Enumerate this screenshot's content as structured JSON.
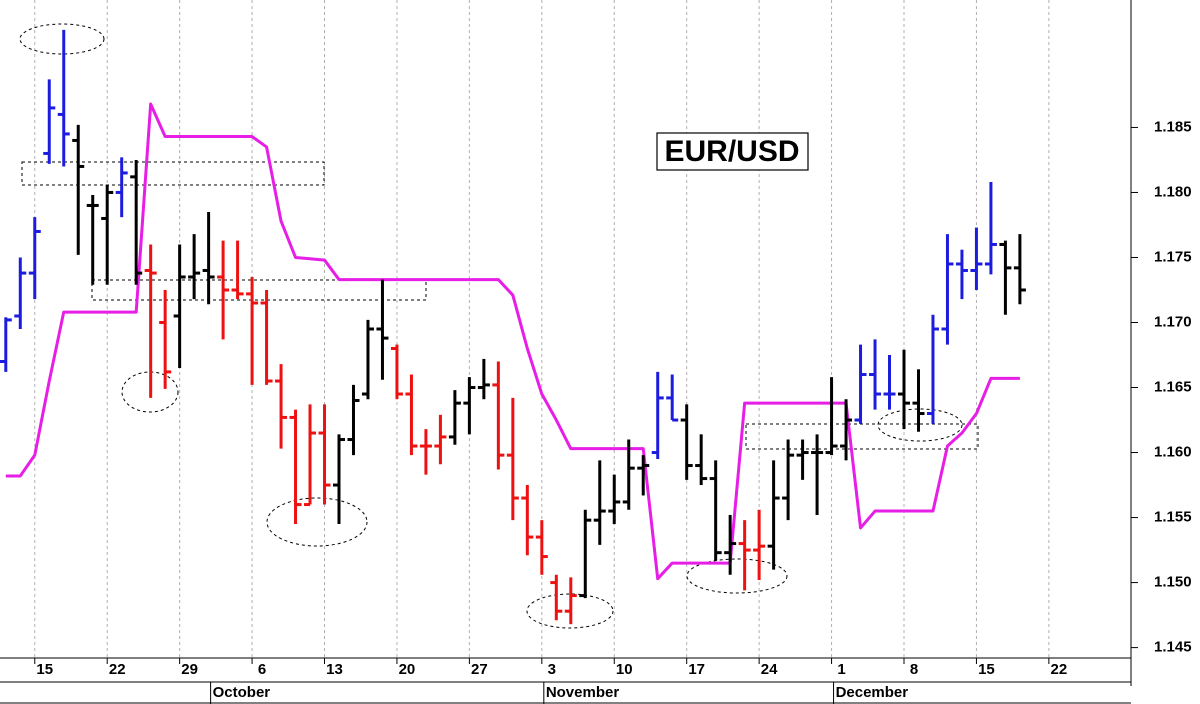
{
  "chart_data": {
    "type": "ohlc",
    "title": "EUR/USD",
    "categories": [
      null,
      null,
      "15",
      null,
      null,
      null,
      null,
      "22",
      null,
      null,
      null,
      null,
      "29",
      null,
      null,
      null,
      null,
      "6",
      null,
      null,
      null,
      null,
      "13",
      null,
      null,
      null,
      null,
      "20",
      null,
      null,
      null,
      null,
      "27",
      null,
      null,
      null,
      null,
      "3",
      null,
      null,
      null,
      null,
      "10",
      null,
      null,
      null,
      null,
      "17",
      null,
      null,
      null,
      null,
      "24",
      null,
      null,
      null,
      null,
      "1",
      null,
      null,
      null,
      null,
      "8",
      null,
      null,
      null,
      null,
      "15",
      null,
      null,
      null,
      null,
      "22",
      null,
      null,
      null,
      null,
      null
    ],
    "month_labels": [
      null,
      null,
      null,
      null,
      null,
      null,
      null,
      null,
      null,
      null,
      null,
      null,
      null,
      null,
      "October",
      null,
      null,
      null,
      null,
      null,
      null,
      null,
      null,
      null,
      null,
      null,
      null,
      null,
      null,
      null,
      null,
      null,
      null,
      null,
      null,
      null,
      null,
      "November",
      null,
      null,
      null,
      null,
      null,
      null,
      null,
      null,
      null,
      null,
      null,
      null,
      null,
      null,
      null,
      null,
      null,
      null,
      null,
      "December",
      null,
      null,
      null,
      null,
      null,
      null,
      null,
      null,
      null,
      null,
      null,
      null,
      null,
      null,
      null,
      null,
      null,
      null,
      null,
      null
    ],
    "open": [
      1.167,
      1.1705,
      1.1738,
      1.183,
      1.186,
      1.184,
      1.179,
      1.178,
      1.18,
      1.1812,
      1.174,
      1.17,
      1.1705,
      1.1735,
      1.174,
      1.1735,
      1.1725,
      1.1722,
      1.1715,
      1.1655,
      1.1627,
      1.156,
      1.1615,
      1.1575,
      1.161,
      1.1645,
      1.1695,
      1.168,
      1.1645,
      1.1605,
      1.1605,
      1.1612,
      1.1638,
      1.165,
      1.1652,
      1.1598,
      1.1565,
      1.1535,
      1.15,
      1.1478,
      1.149,
      1.1548,
      1.1555,
      1.1562,
      1.1588,
      1.16,
      1.1642,
      1.1625,
      1.159,
      1.158,
      1.1523,
      1.153,
      1.1525,
      1.1528,
      1.1565,
      1.1598,
      1.16,
      1.16,
      1.1605,
      1.1625,
      1.166,
      1.1645,
      1.1645,
      1.1638,
      1.163,
      1.1695,
      1.1745,
      1.174,
      1.1745,
      1.176,
      1.1742,
      null,
      null,
      null,
      null,
      null,
      null,
      null
    ],
    "high": [
      1.1704,
      1.175,
      1.1781,
      1.1887,
      1.1925,
      1.1852,
      1.1798,
      1.1806,
      1.1827,
      1.1825,
      1.176,
      1.1725,
      1.176,
      1.1768,
      1.1785,
      1.1763,
      1.1763,
      1.1735,
      1.1725,
      1.1668,
      1.1633,
      1.1637,
      1.1637,
      1.1614,
      1.1652,
      1.1702,
      1.1733,
      1.1683,
      1.166,
      1.1618,
      1.1629,
      1.1648,
      1.1658,
      1.1672,
      1.167,
      1.1642,
      1.1575,
      1.1548,
      1.1506,
      1.1504,
      1.1556,
      1.1594,
      1.1583,
      1.161,
      1.1598,
      1.1662,
      1.166,
      1.1637,
      1.1614,
      1.1594,
      1.1552,
      1.1548,
      1.1556,
      1.1594,
      1.161,
      1.161,
      1.1614,
      1.1658,
      1.1641,
      1.1683,
      1.1687,
      1.1675,
      1.1679,
      1.1664,
      1.1706,
      1.1768,
      1.1756,
      1.1773,
      1.1808,
      1.1763,
      1.1768,
      null,
      null,
      null,
      null,
      null,
      null,
      null
    ],
    "low": [
      1.1662,
      1.1695,
      1.1718,
      1.1822,
      1.182,
      1.1752,
      1.1729,
      1.1729,
      1.1781,
      1.1729,
      1.1642,
      1.1649,
      1.1665,
      1.1718,
      1.1714,
      1.1687,
      1.1718,
      1.1652,
      1.1652,
      1.1603,
      1.1545,
      1.156,
      1.156,
      1.1545,
      1.1598,
      1.1641,
      1.1656,
      1.1641,
      1.1598,
      1.1583,
      1.1591,
      1.1606,
      1.1614,
      1.1641,
      1.1587,
      1.1548,
      1.1521,
      1.1506,
      1.1471,
      1.1468,
      1.1488,
      1.1529,
      1.1545,
      1.1556,
      1.1567,
      1.1595,
      1.1625,
      1.1579,
      1.1575,
      1.1517,
      1.1506,
      1.1494,
      1.1502,
      1.151,
      1.1548,
      1.1579,
      1.1552,
      1.1598,
      1.1594,
      1.1622,
      1.1633,
      1.1633,
      1.1618,
      1.1616,
      1.1622,
      1.1683,
      1.1718,
      1.1725,
      1.1737,
      1.1706,
      1.1714,
      null,
      null,
      null,
      null,
      null,
      null,
      null
    ],
    "close": [
      1.1702,
      1.1738,
      1.177,
      1.1865,
      1.1845,
      1.182,
      1.179,
      1.18,
      1.1815,
      1.1738,
      1.1738,
      1.1662,
      1.1735,
      1.1738,
      1.1735,
      1.1725,
      1.1722,
      1.1715,
      1.1655,
      1.1627,
      1.156,
      1.1615,
      1.1575,
      1.161,
      1.164,
      1.1695,
      1.1688,
      1.1645,
      1.1605,
      1.1605,
      1.1612,
      1.1638,
      1.165,
      1.1652,
      1.1598,
      1.1565,
      1.1535,
      1.152,
      1.1478,
      1.149,
      1.1548,
      1.1555,
      1.1562,
      1.1588,
      1.159,
      1.1642,
      1.1625,
      1.159,
      1.158,
      1.1523,
      1.153,
      1.1525,
      1.1528,
      1.1565,
      1.1598,
      1.16,
      1.16,
      1.1605,
      1.1625,
      1.166,
      1.1645,
      1.1645,
      1.1638,
      1.163,
      1.1695,
      1.1745,
      1.174,
      1.1745,
      1.176,
      1.1742,
      1.1725,
      null,
      null,
      null,
      null,
      null,
      null,
      null
    ],
    "bar_colors": [
      "#1c1ce0",
      "#1c1ce0",
      "#1c1ce0",
      "#1c1ce0",
      "#1c1ce0",
      "#000000",
      "#000000",
      "#000000",
      "#1c1ce0",
      "#000000",
      "#ee1111",
      "#ee1111",
      "#000000",
      "#000000",
      "#000000",
      "#ee1111",
      "#ee1111",
      "#ee1111",
      "#ee1111",
      "#ee1111",
      "#ee1111",
      "#ee1111",
      "#ee1111",
      "#000000",
      "#000000",
      "#000000",
      "#000000",
      "#ee1111",
      "#ee1111",
      "#ee1111",
      "#ee1111",
      "#000000",
      "#000000",
      "#000000",
      "#ee1111",
      "#ee1111",
      "#ee1111",
      "#ee1111",
      "#ee1111",
      "#ee1111",
      "#000000",
      "#000000",
      "#000000",
      "#000000",
      "#000000",
      "#1c1ce0",
      "#1c1ce0",
      "#000000",
      "#000000",
      "#000000",
      "#000000",
      "#ee1111",
      "#ee1111",
      "#000000",
      "#000000",
      "#000000",
      "#000000",
      "#000000",
      "#000000",
      "#1c1ce0",
      "#1c1ce0",
      "#1c1ce0",
      "#000000",
      "#000000",
      "#1c1ce0",
      "#1c1ce0",
      "#1c1ce0",
      "#1c1ce0",
      "#1c1ce0",
      "#000000",
      "#000000",
      null,
      null,
      null,
      null,
      null,
      null,
      null
    ],
    "line": {
      "color": "#e61ee6",
      "values": [
        1.1582,
        1.1582,
        1.1598,
        1.1655,
        1.1708,
        1.1708,
        1.1708,
        1.1708,
        1.1708,
        1.1708,
        1.1868,
        1.1843,
        1.1843,
        1.1843,
        1.1843,
        1.1843,
        1.1843,
        1.1843,
        1.1835,
        1.1778,
        1.175,
        1.1749,
        1.1748,
        1.1733,
        1.1733,
        1.1733,
        1.1733,
        1.1733,
        1.1733,
        1.1733,
        1.1733,
        1.1733,
        1.1733,
        1.1733,
        1.1733,
        1.1721,
        1.168,
        1.1645,
        1.1625,
        1.1603,
        1.1603,
        1.1603,
        1.1603,
        1.1603,
        1.1603,
        1.1503,
        1.1515,
        1.1515,
        1.1515,
        1.1515,
        1.1515,
        1.1638,
        1.1638,
        1.1638,
        1.1638,
        1.1638,
        1.1638,
        1.1638,
        1.1638,
        1.1542,
        1.1555,
        1.1555,
        1.1555,
        1.1555,
        1.1555,
        1.1605,
        1.1615,
        1.163,
        1.1657,
        1.1657,
        1.1657,
        null,
        null,
        null,
        null,
        null,
        null,
        null
      ]
    },
    "ylim": [
      1.1442,
      1.1948
    ],
    "yticks": [
      1.145,
      {
        "value": 1.15,
        "label": "1.150"
      },
      1.155,
      {
        "value": 1.16,
        "label": "1.160"
      },
      1.165,
      {
        "value": 1.17,
        "label": "1.170"
      },
      1.175,
      {
        "value": 1.18,
        "label": "1.180"
      },
      1.185
    ],
    "grid": true
  }
}
